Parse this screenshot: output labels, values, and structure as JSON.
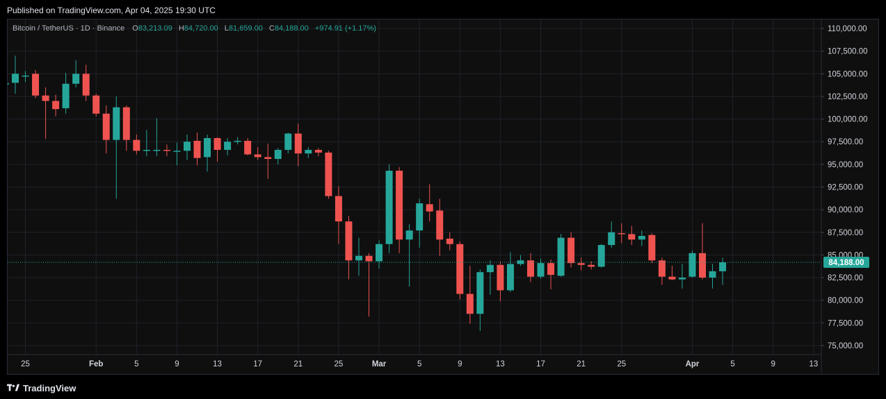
{
  "header": {
    "published": "Published on TradingView.com, Apr 04, 2025 19:30 UTC"
  },
  "legend": {
    "symbol": "Bitcoin / TetherUS · 1D · Binance",
    "o_label": "O",
    "o_value": "83,213.09",
    "h_label": "H",
    "h_value": "84,720.00",
    "l_label": "L",
    "l_value": "81,659.00",
    "c_label": "C",
    "c_value": "84,188.00",
    "change": "+974.91 (+1.17%)"
  },
  "price_badge": "84,188.00",
  "footer": {
    "brand": "TradingView"
  },
  "colors": {
    "up": "#26a69a",
    "down": "#ef5350",
    "grid": "#1f222a",
    "axis_text": "#d1d4dc",
    "badge": "#26a69a"
  },
  "chart_data": {
    "type": "candlestick",
    "y_ticks": [
      "110,000.00",
      "107,500.00",
      "105,000.00",
      "102,500.00",
      "100,000.00",
      "97,500.00",
      "95,000.00",
      "92,500.00",
      "90,000.00",
      "87,500.00",
      "85,000.00",
      "82,500.00",
      "80,000.00",
      "77,500.00",
      "75,000.00"
    ],
    "y_tick_values": [
      110000,
      107500,
      105000,
      102500,
      100000,
      97500,
      95000,
      92500,
      90000,
      87500,
      85000,
      82500,
      80000,
      77500,
      75000
    ],
    "ylim": [
      74000,
      111000
    ],
    "x_ticks": [
      {
        "label": "25",
        "day": 0
      },
      {
        "label": "Feb",
        "day": 7,
        "bold": true
      },
      {
        "label": "5",
        "day": 11
      },
      {
        "label": "9",
        "day": 15
      },
      {
        "label": "13",
        "day": 19
      },
      {
        "label": "17",
        "day": 23
      },
      {
        "label": "21",
        "day": 27
      },
      {
        "label": "25",
        "day": 31
      },
      {
        "label": "Mar",
        "day": 35,
        "bold": true
      },
      {
        "label": "5",
        "day": 39
      },
      {
        "label": "9",
        "day": 43
      },
      {
        "label": "13",
        "day": 47
      },
      {
        "label": "17",
        "day": 51
      },
      {
        "label": "21",
        "day": 55
      },
      {
        "label": "25",
        "day": 59
      },
      {
        "label": "Apr",
        "day": 66,
        "bold": true
      },
      {
        "label": "5",
        "day": 70
      },
      {
        "label": "9",
        "day": 74
      },
      {
        "label": "13",
        "day": 78
      }
    ],
    "last_price": 84188,
    "candles": [
      {
        "day": -2,
        "o": 103800,
        "h": 104200,
        "l": 103500,
        "c": 104000
      },
      {
        "day": -1,
        "o": 104000,
        "h": 107000,
        "l": 102800,
        "c": 105000
      },
      {
        "day": 0,
        "o": 104700,
        "h": 105300,
        "l": 104100,
        "c": 104800
      },
      {
        "day": 1,
        "o": 105000,
        "h": 105400,
        "l": 102300,
        "c": 102600
      },
      {
        "day": 2,
        "o": 102600,
        "h": 103500,
        "l": 97800,
        "c": 102000
      },
      {
        "day": 3,
        "o": 102000,
        "h": 102700,
        "l": 100300,
        "c": 101100
      },
      {
        "day": 4,
        "o": 101200,
        "h": 105100,
        "l": 100600,
        "c": 103900
      },
      {
        "day": 5,
        "o": 103900,
        "h": 106500,
        "l": 103500,
        "c": 105000
      },
      {
        "day": 6,
        "o": 105000,
        "h": 106000,
        "l": 102000,
        "c": 102600
      },
      {
        "day": 7,
        "o": 102600,
        "h": 102800,
        "l": 100300,
        "c": 100600
      },
      {
        "day": 8,
        "o": 100600,
        "h": 101500,
        "l": 96200,
        "c": 97700
      },
      {
        "day": 9,
        "o": 97700,
        "h": 102500,
        "l": 91200,
        "c": 101300
      },
      {
        "day": 10,
        "o": 101300,
        "h": 101500,
        "l": 96500,
        "c": 97700
      },
      {
        "day": 11,
        "o": 97700,
        "h": 98300,
        "l": 96100,
        "c": 96500
      },
      {
        "day": 12,
        "o": 96500,
        "h": 98800,
        "l": 95900,
        "c": 96600
      },
      {
        "day": 13,
        "o": 96600,
        "h": 100100,
        "l": 95900,
        "c": 96600
      },
      {
        "day": 14,
        "o": 96600,
        "h": 97200,
        "l": 95900,
        "c": 96500
      },
      {
        "day": 15,
        "o": 96500,
        "h": 97400,
        "l": 94900,
        "c": 96500
      },
      {
        "day": 16,
        "o": 96500,
        "h": 98300,
        "l": 95500,
        "c": 97500
      },
      {
        "day": 17,
        "o": 97600,
        "h": 98500,
        "l": 94900,
        "c": 95700
      },
      {
        "day": 18,
        "o": 95800,
        "h": 98300,
        "l": 94200,
        "c": 97900
      },
      {
        "day": 19,
        "o": 97900,
        "h": 98000,
        "l": 95300,
        "c": 96600
      },
      {
        "day": 20,
        "o": 96600,
        "h": 97900,
        "l": 96000,
        "c": 97500
      },
      {
        "day": 21,
        "o": 97500,
        "h": 98000,
        "l": 97200,
        "c": 97600
      },
      {
        "day": 22,
        "o": 97600,
        "h": 97900,
        "l": 96000,
        "c": 96100
      },
      {
        "day": 23,
        "o": 96100,
        "h": 96900,
        "l": 95500,
        "c": 95800
      },
      {
        "day": 24,
        "o": 95800,
        "h": 97300,
        "l": 93400,
        "c": 95600
      },
      {
        "day": 25,
        "o": 95600,
        "h": 96800,
        "l": 95000,
        "c": 96600
      },
      {
        "day": 26,
        "o": 96600,
        "h": 98500,
        "l": 96200,
        "c": 98400
      },
      {
        "day": 27,
        "o": 98400,
        "h": 99500,
        "l": 94800,
        "c": 96200
      },
      {
        "day": 28,
        "o": 96200,
        "h": 96900,
        "l": 95700,
        "c": 96600
      },
      {
        "day": 29,
        "o": 96600,
        "h": 96800,
        "l": 95900,
        "c": 96300
      },
      {
        "day": 30,
        "o": 96300,
        "h": 96500,
        "l": 91200,
        "c": 91500
      },
      {
        "day": 31,
        "o": 91500,
        "h": 92600,
        "l": 86200,
        "c": 88700
      },
      {
        "day": 32,
        "o": 88700,
        "h": 89300,
        "l": 82300,
        "c": 84400
      },
      {
        "day": 33,
        "o": 84400,
        "h": 86900,
        "l": 82700,
        "c": 84900
      },
      {
        "day": 34,
        "o": 84900,
        "h": 85200,
        "l": 78200,
        "c": 84300
      },
      {
        "day": 35,
        "o": 84300,
        "h": 86600,
        "l": 83500,
        "c": 86200
      },
      {
        "day": 36,
        "o": 86200,
        "h": 95000,
        "l": 85200,
        "c": 94300
      },
      {
        "day": 37,
        "o": 94300,
        "h": 94700,
        "l": 85200,
        "c": 86700
      },
      {
        "day": 38,
        "o": 86700,
        "h": 88400,
        "l": 81500,
        "c": 87700
      },
      {
        "day": 39,
        "o": 87700,
        "h": 91200,
        "l": 85800,
        "c": 90700
      },
      {
        "day": 40,
        "o": 90600,
        "h": 92800,
        "l": 88700,
        "c": 89800
      },
      {
        "day": 41,
        "o": 89900,
        "h": 91200,
        "l": 84900,
        "c": 86700
      },
      {
        "day": 42,
        "o": 86800,
        "h": 87500,
        "l": 85500,
        "c": 86200
      },
      {
        "day": 43,
        "o": 86200,
        "h": 86500,
        "l": 80100,
        "c": 80700
      },
      {
        "day": 44,
        "o": 80700,
        "h": 83800,
        "l": 77400,
        "c": 78500
      },
      {
        "day": 45,
        "o": 78500,
        "h": 83400,
        "l": 76600,
        "c": 83100
      },
      {
        "day": 46,
        "o": 83100,
        "h": 84400,
        "l": 80600,
        "c": 83900
      },
      {
        "day": 47,
        "o": 83900,
        "h": 84300,
        "l": 79900,
        "c": 81100
      },
      {
        "day": 48,
        "o": 81100,
        "h": 85300,
        "l": 80900,
        "c": 84000
      },
      {
        "day": 49,
        "o": 84000,
        "h": 85000,
        "l": 83800,
        "c": 84400
      },
      {
        "day": 50,
        "o": 84400,
        "h": 85200,
        "l": 82000,
        "c": 82600
      },
      {
        "day": 51,
        "o": 82600,
        "h": 84600,
        "l": 82400,
        "c": 84100
      },
      {
        "day": 52,
        "o": 84100,
        "h": 84500,
        "l": 81200,
        "c": 82800
      },
      {
        "day": 53,
        "o": 82700,
        "h": 87300,
        "l": 82600,
        "c": 86900
      },
      {
        "day": 54,
        "o": 86900,
        "h": 87500,
        "l": 83600,
        "c": 84100
      },
      {
        "day": 55,
        "o": 84100,
        "h": 84700,
        "l": 83300,
        "c": 83900
      },
      {
        "day": 56,
        "o": 83900,
        "h": 84300,
        "l": 83400,
        "c": 83700
      },
      {
        "day": 57,
        "o": 83700,
        "h": 86200,
        "l": 83600,
        "c": 86100
      },
      {
        "day": 58,
        "o": 86100,
        "h": 88700,
        "l": 85800,
        "c": 87500
      },
      {
        "day": 59,
        "o": 87400,
        "h": 88500,
        "l": 86300,
        "c": 87300
      },
      {
        "day": 60,
        "o": 87300,
        "h": 88200,
        "l": 86100,
        "c": 86700
      },
      {
        "day": 61,
        "o": 86700,
        "h": 87700,
        "l": 86000,
        "c": 87100
      },
      {
        "day": 62,
        "o": 87200,
        "h": 87400,
        "l": 84100,
        "c": 84400
      },
      {
        "day": 63,
        "o": 84400,
        "h": 84700,
        "l": 81700,
        "c": 82600
      },
      {
        "day": 64,
        "o": 82600,
        "h": 83800,
        "l": 82200,
        "c": 82300
      },
      {
        "day": 65,
        "o": 82300,
        "h": 84000,
        "l": 81300,
        "c": 82500
      },
      {
        "day": 66,
        "o": 82600,
        "h": 85500,
        "l": 82500,
        "c": 85200
      },
      {
        "day": 67,
        "o": 85200,
        "h": 88500,
        "l": 82300,
        "c": 82500
      },
      {
        "day": 68,
        "o": 82500,
        "h": 84000,
        "l": 81300,
        "c": 83200
      },
      {
        "day": 69,
        "o": 83200,
        "h": 84700,
        "l": 81700,
        "c": 84188
      }
    ]
  }
}
